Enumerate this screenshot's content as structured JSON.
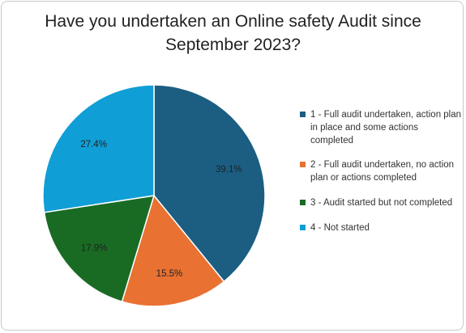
{
  "chart_data": {
    "type": "pie",
    "title_lines": [
      "Have you undertaken an Online safety Audit since",
      "September 2023?"
    ],
    "labels": [
      "1 - Full audit undertaken, action plan in place and some actions completed",
      "2 - Full audit undertaken, no action plan or actions completed",
      "3 - Audit started but not completed",
      "4 - Not started"
    ],
    "values": [
      39.1,
      15.5,
      17.9,
      27.4
    ],
    "data_labels": [
      "39.1%",
      "15.5%",
      "17.9%",
      "27.4%"
    ],
    "colors": [
      "#1b5e82",
      "#e97132",
      "#196b24",
      "#0f9ed5"
    ],
    "legend_position": "right",
    "start_angle_deg": 0,
    "direction": "clockwise"
  }
}
